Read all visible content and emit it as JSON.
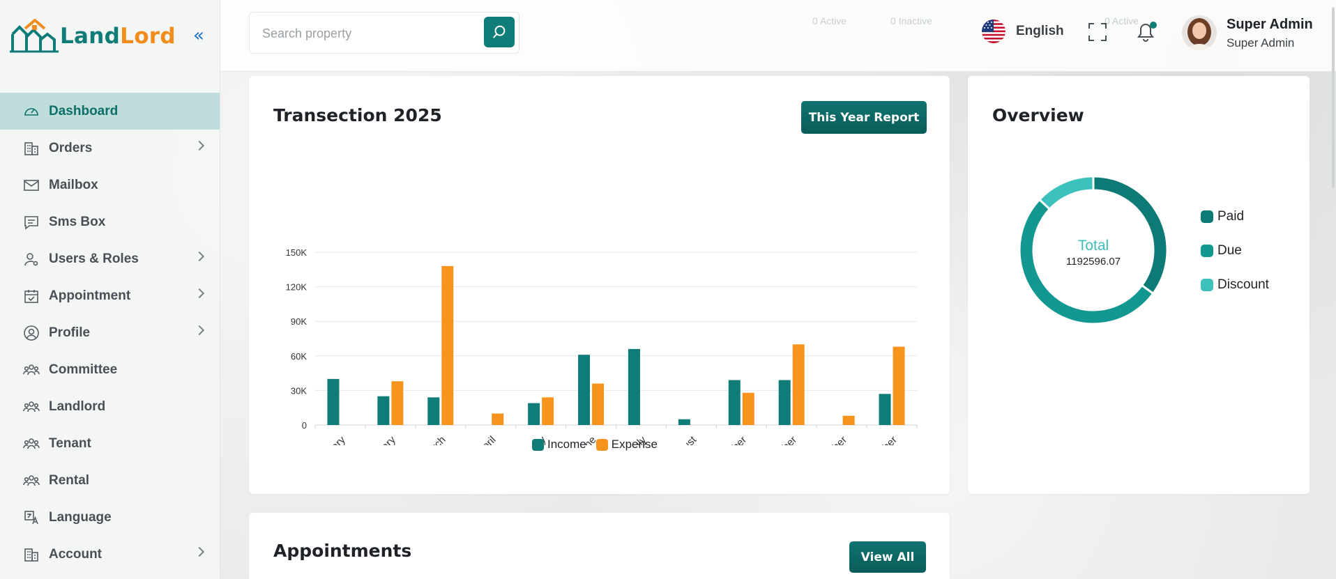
{
  "brand": {
    "part1": "Land",
    "part2": "Lord",
    "colors": {
      "primary": "#0f7c78",
      "accent": "#f28c1c"
    }
  },
  "sidebar": {
    "items": [
      {
        "label": "Dashboard",
        "icon": "speedometer-icon",
        "active": true,
        "has_children": false
      },
      {
        "label": "Orders",
        "icon": "building-icon",
        "active": false,
        "has_children": true
      },
      {
        "label": "Mailbox",
        "icon": "mail-icon",
        "active": false,
        "has_children": false
      },
      {
        "label": "Sms Box",
        "icon": "chat-icon",
        "active": false,
        "has_children": false
      },
      {
        "label": "Users & Roles",
        "icon": "user-key-icon",
        "active": false,
        "has_children": true
      },
      {
        "label": "Appointment",
        "icon": "calendar-check-icon",
        "active": false,
        "has_children": true
      },
      {
        "label": "Profile",
        "icon": "user-circle-icon",
        "active": false,
        "has_children": true
      },
      {
        "label": "Committee",
        "icon": "people-group-icon",
        "active": false,
        "has_children": false
      },
      {
        "label": "Landlord",
        "icon": "people-group-icon",
        "active": false,
        "has_children": false
      },
      {
        "label": "Tenant",
        "icon": "people-group-icon",
        "active": false,
        "has_children": false
      },
      {
        "label": "Rental",
        "icon": "people-group-icon",
        "active": false,
        "has_children": false
      },
      {
        "label": "Language",
        "icon": "translate-icon",
        "active": false,
        "has_children": false
      },
      {
        "label": "Account",
        "icon": "building-icon",
        "active": false,
        "has_children": true
      }
    ]
  },
  "header": {
    "search_placeholder": "Search property",
    "ghost": {
      "active": "0 Active",
      "inactive": "0 Inactive",
      "active2": "0 Active"
    },
    "language": "English",
    "user": {
      "name": "Super Admin",
      "role": "Super Admin"
    }
  },
  "transactions": {
    "title": "Transection 2025",
    "report_button": "This Year Report"
  },
  "overview": {
    "title": "Overview",
    "total_label": "Total",
    "total_value": "1192596.07"
  },
  "appointments": {
    "title": "Appointments",
    "view_all": "View All"
  },
  "chart_data": [
    {
      "type": "bar",
      "categories": [
        "January",
        "February",
        "March",
        "April",
        "May",
        "June",
        "July",
        "August",
        "September",
        "October",
        "November",
        "December"
      ],
      "series": [
        {
          "name": "Income",
          "color": "#0f7c78",
          "values": [
            40000,
            25000,
            24000,
            0,
            19000,
            61000,
            66000,
            5000,
            39000,
            39000,
            0,
            27000
          ]
        },
        {
          "name": "Expense",
          "color": "#f7941d",
          "values": [
            0,
            38000,
            138000,
            10000,
            24000,
            36000,
            0,
            0,
            28000,
            70000,
            8000,
            68000
          ]
        }
      ],
      "yticks": [
        "0",
        "30K",
        "60K",
        "90K",
        "120K",
        "150K"
      ],
      "ylim": [
        0,
        150000
      ],
      "grid": true,
      "legend": "bottom"
    },
    {
      "type": "pie",
      "labels": [
        "Paid",
        "Due",
        "Discount"
      ],
      "colors": [
        "#0e7a76",
        "#139791",
        "#3dc1bd"
      ],
      "values": [
        35,
        52,
        13
      ]
    }
  ]
}
